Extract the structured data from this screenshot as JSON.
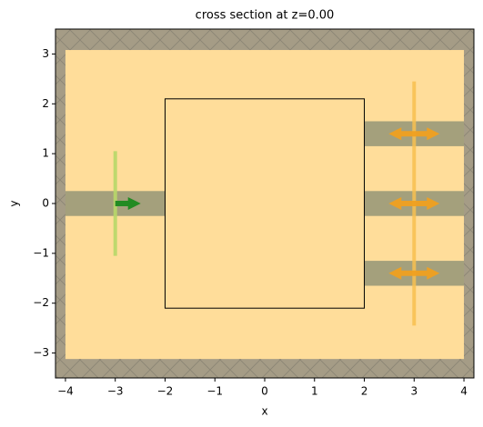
{
  "chart_data": {
    "type": "section",
    "title": "cross section at z=0.00",
    "xlabel": "x",
    "ylabel": "y",
    "xlim": [
      -4.2,
      4.2
    ],
    "ylim": [
      -3.5,
      3.5
    ],
    "xticks": [
      {
        "value": -4,
        "label": "−4"
      },
      {
        "value": -3,
        "label": "−3"
      },
      {
        "value": -2,
        "label": "−2"
      },
      {
        "value": -1,
        "label": "−1"
      },
      0,
      1,
      2,
      3,
      4
    ],
    "yticks": [
      {
        "value": -3,
        "label": "−3"
      },
      {
        "value": -2,
        "label": "−2"
      },
      {
        "value": -1,
        "label": "−1"
      },
      0,
      1,
      2,
      3
    ],
    "background_color": "#ffdd9a",
    "waveguide_color": "#a4a07c",
    "pml_color": "#a59c86",
    "waveguides": [
      {
        "x": [
          -4.2,
          -2
        ],
        "y": [
          -0.25,
          0.25
        ]
      },
      {
        "x": [
          2,
          4.2
        ],
        "y": [
          1.15,
          1.65
        ]
      },
      {
        "x": [
          2,
          4.2
        ],
        "y": [
          -0.25,
          0.25
        ]
      },
      {
        "x": [
          2,
          4.2
        ],
        "y": [
          -1.65,
          -1.15
        ]
      }
    ],
    "design_region": {
      "x": [
        -2,
        2
      ],
      "y": [
        -2.1,
        2.1
      ]
    },
    "pml": [
      {
        "x": [
          -4.2,
          -4
        ],
        "y": [
          -3.5,
          3.5
        ]
      },
      {
        "x": [
          4,
          4.2
        ],
        "y": [
          -3.5,
          3.5
        ]
      },
      {
        "x": [
          -4.2,
          4.2
        ],
        "y": [
          3.08,
          3.5
        ]
      },
      {
        "x": [
          -4.2,
          4.2
        ],
        "y": [
          -3.5,
          -3.12
        ]
      }
    ],
    "source": {
      "x": -3,
      "y": [
        -1.05,
        1.05
      ],
      "color": "#b8d86a",
      "arrow_color": "#228b22"
    },
    "monitor": {
      "x": 3,
      "y": [
        -2.45,
        2.45
      ],
      "color": "#f8c050",
      "arrow_color": "#f0a020"
    }
  }
}
